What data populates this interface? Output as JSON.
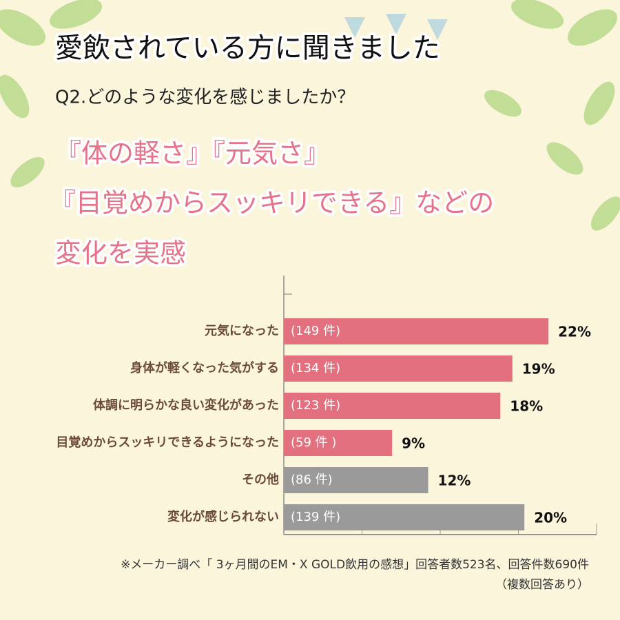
{
  "header": {
    "title": "愛飲されている方に聞きました",
    "subtitle": "Q2.どのような変化を感じましたか？",
    "headline": [
      "『体の軽さ』『元気さ』",
      "『目覚めからスッキリできる』などの",
      "変化を実感"
    ]
  },
  "chart_data": {
    "type": "bar",
    "orientation": "horizontal",
    "categories": [
      "元気になった",
      "身体が軽くなった気がする",
      "体調に明らかな良い変化があった",
      "目覚めからスッキリできるようになった",
      "その他",
      "変化が感じられない"
    ],
    "values": [
      22,
      19,
      18,
      9,
      12,
      20
    ],
    "value_labels": [
      "22%",
      "19%",
      "18%",
      "9%",
      "12%",
      "20%"
    ],
    "count_labels": [
      "(149 件)",
      "(134 件)",
      "(123 件)",
      "(59 件 )",
      "(86 件)",
      "(139 件)"
    ],
    "colors": [
      "#e3707f",
      "#e3707f",
      "#e3707f",
      "#e3707f",
      "#9a9a9a",
      "#9a9a9a"
    ],
    "xlim": [
      0,
      26
    ],
    "xticks": [
      0,
      6.5,
      13,
      19.5,
      26
    ],
    "grid": true
  },
  "footnote": [
    "※メーカー調べ「 3ヶ月間のEM・X GOLD飲用の感想」回答者数523名、回答件数690件",
    "（複数回答あり）"
  ]
}
